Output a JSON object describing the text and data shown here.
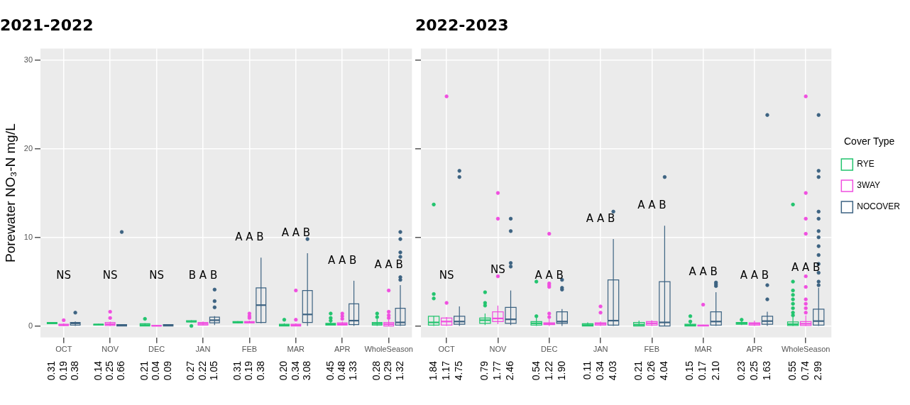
{
  "chart_data": [
    {
      "type": "box",
      "title": "2021-2022",
      "ylabel": "Porewater NO₃-N mg/L",
      "categories": [
        "OCT",
        "NOV",
        "DEC",
        "JAN",
        "FEB",
        "MAR",
        "APR",
        "WholeSeason"
      ],
      "ylim": [
        -1.3,
        31.3
      ],
      "yticks": [
        0,
        10,
        20,
        30
      ],
      "grid": true,
      "series": [
        {
          "color": "#22c46e",
          "value_labels": [
            "0.31",
            "0.14",
            "0.21",
            "0.27",
            "0.31",
            "0.20",
            "0.45",
            "0.28"
          ],
          "boxes": [
            {
              "low": 0.2,
              "q1": 0.25,
              "median": 0.3,
              "q3": 0.4,
              "high": 0.45
            },
            {
              "low": 0.05,
              "q1": 0.1,
              "median": 0.15,
              "q3": 0.2,
              "high": 0.25
            },
            {
              "low": 0,
              "q1": 0,
              "median": 0.1,
              "q3": 0.25,
              "high": 0.3,
              "outliers": [
                0.8
              ]
            },
            {
              "low": 0.4,
              "q1": 0.45,
              "median": 0.5,
              "q3": 0.6,
              "high": 0.65,
              "outliers": [
                0
              ]
            },
            {
              "low": 0.3,
              "q1": 0.35,
              "median": 0.4,
              "q3": 0.5,
              "high": 0.55
            },
            {
              "low": 0,
              "q1": 0,
              "median": 0.1,
              "q3": 0.2,
              "high": 0.3,
              "outliers": [
                0.7
              ]
            },
            {
              "low": 0.05,
              "q1": 0.1,
              "median": 0.2,
              "q3": 0.3,
              "high": 0.45,
              "outliers": [
                0.6,
                0.9,
                1.4
              ]
            },
            {
              "low": 0,
              "q1": 0.1,
              "median": 0.25,
              "q3": 0.4,
              "high": 0.8,
              "outliers": [
                1.0,
                1.4
              ]
            }
          ]
        },
        {
          "color": "#f04fe0",
          "value_labels": [
            "0.19",
            "0.25",
            "0.04",
            "0.22",
            "0.19",
            "0.34",
            "0.48",
            "0.29"
          ],
          "boxes": [
            {
              "low": 0,
              "q1": 0.05,
              "median": 0.1,
              "q3": 0.2,
              "high": 0.3,
              "outliers": [
                0.65
              ]
            },
            {
              "low": 0,
              "q1": 0.05,
              "median": 0.2,
              "q3": 0.4,
              "high": 0.5,
              "outliers": [
                0.9,
                1.6
              ]
            },
            {
              "low": 0,
              "q1": 0,
              "median": 0.02,
              "q3": 0.05,
              "high": 0.1
            },
            {
              "low": 0.05,
              "q1": 0.1,
              "median": 0.25,
              "q3": 0.4,
              "high": 0.5
            },
            {
              "low": 0.3,
              "q1": 0.35,
              "median": 0.4,
              "q3": 0.5,
              "high": 0.6,
              "outliers": [
                0.9,
                1.1,
                1.4
              ]
            },
            {
              "low": 0,
              "q1": 0,
              "median": 0.1,
              "q3": 0.2,
              "high": 0.3,
              "outliers": [
                0.7,
                4.0
              ]
            },
            {
              "low": 0.05,
              "q1": 0.1,
              "median": 0.2,
              "q3": 0.35,
              "high": 0.5,
              "outliers": [
                0.8,
                1.1,
                1.4
              ]
            },
            {
              "low": 0,
              "q1": 0,
              "median": 0.2,
              "q3": 0.4,
              "high": 0.7,
              "outliers": [
                0.9,
                1.2,
                1.6,
                4.0
              ]
            }
          ]
        },
        {
          "color": "#3d6382",
          "value_labels": [
            "0.38",
            "0.66",
            "0.09",
            "1.05",
            "0.38",
            "3.08",
            "1.33",
            "1.32"
          ],
          "boxes": [
            {
              "low": 0,
              "q1": 0.1,
              "median": 0.3,
              "q3": 0.4,
              "high": 0.5,
              "outliers": [
                1.5
              ]
            },
            {
              "low": 0,
              "q1": 0,
              "median": 0.05,
              "q3": 0.15,
              "high": 0.2,
              "outliers": [
                10.6
              ]
            },
            {
              "low": 0,
              "q1": 0,
              "median": 0.05,
              "q3": 0.15,
              "high": 0.2
            },
            {
              "low": 0.1,
              "q1": 0.35,
              "median": 0.65,
              "q3": 1.0,
              "high": 1.1,
              "outliers": [
                2.1,
                2.8,
                4.1
              ]
            },
            {
              "low": 0.3,
              "q1": 0.4,
              "median": 2.35,
              "q3": 4.3,
              "high": 7.7
            },
            {
              "low": 0,
              "q1": 0.4,
              "median": 1.3,
              "q3": 4.0,
              "high": 8.2,
              "outliers": [
                9.8
              ]
            },
            {
              "low": 0,
              "q1": 0.15,
              "median": 0.6,
              "q3": 2.5,
              "high": 5.1
            },
            {
              "low": 0,
              "q1": 0.1,
              "median": 0.4,
              "q3": 2.0,
              "high": 4.6,
              "outliers": [
                5.2,
                5.5,
                7.8,
                8.3,
                9.8,
                10.6
              ]
            }
          ]
        }
      ],
      "annotations": [
        "NS",
        "NS",
        "NS",
        "B A B",
        "A A B",
        "A A B",
        "A A B",
        "A A B"
      ]
    },
    {
      "type": "box",
      "title": "2022-2023",
      "categories": [
        "OCT",
        "NOV",
        "DEC",
        "JAN",
        "FEB",
        "MAR",
        "APR",
        "WholeSeason"
      ],
      "ylim": [
        -1.3,
        31.3
      ],
      "yticks": [
        0,
        10,
        20,
        30
      ],
      "grid": true,
      "tick_labels": "x",
      "legend": "right",
      "legend_title": "Cover Type",
      "series": [
        {
          "name": "RYE",
          "color": "#22c46e",
          "value_labels": [
            "1.84",
            "0.79",
            "0.54",
            "0.11",
            "0.21",
            "0.15",
            "0.23",
            "0.55"
          ],
          "boxes": [
            {
              "low": 0,
              "q1": 0.1,
              "median": 0.4,
              "q3": 1.1,
              "high": 1.1,
              "outliers": [
                3.1,
                3.6,
                13.7
              ]
            },
            {
              "low": 0.1,
              "q1": 0.3,
              "median": 0.65,
              "q3": 0.9,
              "high": 1.4,
              "outliers": [
                2.3,
                2.6,
                3.8
              ]
            },
            {
              "low": 0,
              "q1": 0.1,
              "median": 0.3,
              "q3": 0.5,
              "high": 1.0,
              "outliers": [
                1.1,
                5.0
              ]
            },
            {
              "low": 0,
              "q1": 0,
              "median": 0.1,
              "q3": 0.25,
              "high": 0.4
            },
            {
              "low": 0,
              "q1": 0,
              "median": 0.15,
              "q3": 0.4,
              "high": 0.6
            },
            {
              "low": 0,
              "q1": 0,
              "median": 0.1,
              "q3": 0.2,
              "high": 0.4,
              "outliers": [
                0.5,
                1.1
              ]
            },
            {
              "low": 0.1,
              "q1": 0.2,
              "median": 0.3,
              "q3": 0.4,
              "high": 0.6,
              "outliers": [
                0.7
              ]
            },
            {
              "low": 0,
              "q1": 0.05,
              "median": 0.2,
              "q3": 0.45,
              "high": 1.0,
              "outliers": [
                1.2,
                1.5,
                2.0,
                2.5,
                3.0,
                3.5,
                4.0,
                5.0,
                13.7
              ]
            }
          ]
        },
        {
          "name": "3WAY",
          "color": "#f04fe0",
          "value_labels": [
            "1.17",
            "1.77",
            "1.22",
            "0.34",
            "0.26",
            "0.17",
            "0.25",
            "0.74"
          ],
          "boxes": [
            {
              "low": 0,
              "q1": 0.1,
              "median": 0.5,
              "q3": 0.9,
              "high": 1.0,
              "outliers": [
                2.6,
                25.9
              ]
            },
            {
              "low": 0.2,
              "q1": 0.5,
              "median": 0.85,
              "q3": 1.6,
              "high": 2.3,
              "outliers": [
                5.6,
                12.1,
                15.0
              ]
            },
            {
              "low": 0,
              "q1": 0.15,
              "median": 0.25,
              "q3": 0.35,
              "high": 0.8,
              "outliers": [
                1.0,
                1.4,
                4.4,
                4.6,
                4.8,
                10.4
              ]
            },
            {
              "low": 0,
              "q1": 0.1,
              "median": 0.25,
              "q3": 0.35,
              "high": 0.5,
              "outliers": [
                1.5,
                2.2
              ]
            },
            {
              "low": 0,
              "q1": 0.1,
              "median": 0.3,
              "q3": 0.5,
              "high": 0.65
            },
            {
              "low": 0,
              "q1": 0,
              "median": 0.05,
              "q3": 0.1,
              "high": 0.15,
              "outliers": [
                2.4
              ]
            },
            {
              "low": 0,
              "q1": 0.1,
              "median": 0.25,
              "q3": 0.35,
              "high": 0.6
            },
            {
              "low": 0,
              "q1": 0.05,
              "median": 0.25,
              "q3": 0.5,
              "high": 1.2,
              "outliers": [
                1.5,
                2.0,
                2.5,
                3.0,
                4.4,
                5.6,
                10.4,
                12.1,
                15.0,
                25.9
              ]
            }
          ]
        },
        {
          "name": "NOCOVER",
          "color": "#3d6382",
          "value_labels": [
            "4.75",
            "2.46",
            "1.90",
            "4.03",
            "4.04",
            "2.10",
            "1.63",
            "2.99"
          ],
          "boxes": [
            {
              "low": 0,
              "q1": 0.2,
              "median": 0.5,
              "q3": 1.1,
              "high": 2.2,
              "outliers": [
                16.8,
                17.5
              ]
            },
            {
              "low": 0.1,
              "q1": 0.3,
              "median": 0.75,
              "q3": 2.1,
              "high": 4.0,
              "outliers": [
                6.7,
                7.1,
                10.7,
                12.1
              ]
            },
            {
              "low": 0,
              "q1": 0.3,
              "median": 0.5,
              "q3": 1.6,
              "high": 1.9,
              "outliers": [
                4.1,
                4.3,
                5.2
              ]
            },
            {
              "low": 0,
              "q1": 0.1,
              "median": 0.6,
              "q3": 5.2,
              "high": 9.8,
              "outliers": [
                12.9
              ]
            },
            {
              "low": 0,
              "q1": 0,
              "median": 0.4,
              "q3": 5.0,
              "high": 11.3,
              "outliers": [
                16.8
              ]
            },
            {
              "low": 0,
              "q1": 0.1,
              "median": 0.5,
              "q3": 1.6,
              "high": 3.8,
              "outliers": [
                4.5,
                4.7,
                4.9
              ]
            },
            {
              "low": 0,
              "q1": 0.2,
              "median": 0.55,
              "q3": 1.1,
              "high": 1.6,
              "outliers": [
                3.0,
                4.6,
                23.8
              ]
            },
            {
              "low": 0,
              "q1": 0.1,
              "median": 0.55,
              "q3": 1.9,
              "high": 4.3,
              "outliers": [
                4.6,
                5.0,
                6.0,
                7.0,
                8.0,
                9.0,
                10.0,
                10.7,
                12.1,
                12.9,
                16.8,
                17.5,
                23.8
              ]
            }
          ]
        }
      ],
      "annotations": [
        "NS",
        "NS",
        "A A B",
        "A A B",
        "A A B",
        "A A B",
        "A A B",
        "A A B"
      ]
    }
  ]
}
